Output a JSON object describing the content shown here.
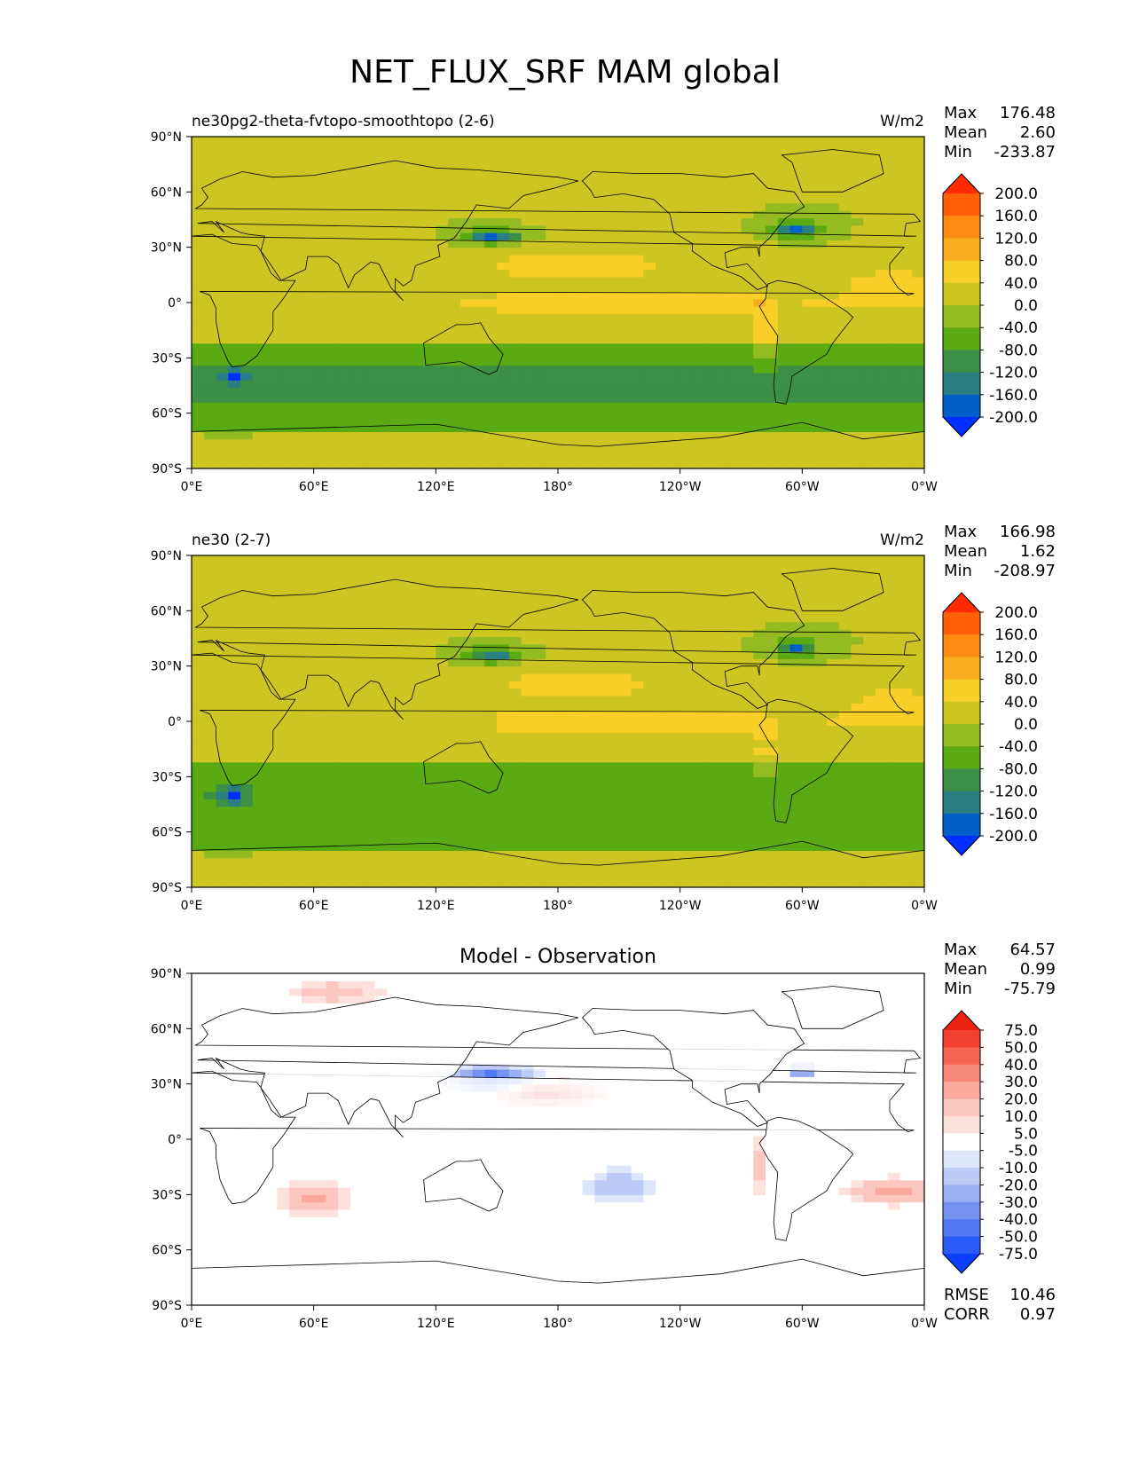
{
  "title": "NET_FLUX_SRF MAM global",
  "x_ticks": [
    "0°E",
    "60°E",
    "120°E",
    "180°",
    "120°W",
    "60°W",
    "0°W"
  ],
  "y_ticks": [
    "90°N",
    "60°N",
    "30°N",
    "0°",
    "30°S",
    "60°S",
    "90°S"
  ],
  "stat_labels": {
    "max": "Max",
    "mean": "Mean",
    "min": "Min",
    "rmse": "RMSE",
    "corr": "CORR"
  },
  "colors": {
    "model_levels": [
      "#0030ff",
      "#0060c8",
      "#2a7f82",
      "#3c8f44",
      "#5aaa14",
      "#95bb22",
      "#ccc522",
      "#f8cf26",
      "#f8ad1e",
      "#ff8a14",
      "#ff5f08",
      "#ff2a00"
    ],
    "diff_levels": [
      "#0a3fff",
      "#2c5cf8",
      "#5278f2",
      "#7693f0",
      "#9aaff2",
      "#bccaf6",
      "#dde5fb",
      "#ffffff",
      "#fde1dc",
      "#fcc7be",
      "#faa99c",
      "#f8887a",
      "#f56552",
      "#f1412e",
      "#ee2010"
    ],
    "coast": "#000000"
  },
  "chart_data": [
    {
      "type": "heatmap",
      "title": "ne30pg2-theta-fvtopo-smoothtopo (2-6)",
      "units": "W/m2",
      "stats": {
        "max": "176.48",
        "mean": "2.60",
        "min": "-233.87"
      },
      "colorbar_labels": [
        "200.0",
        "160.0",
        "120.0",
        "80.0",
        "40.0",
        "0.0",
        "-40.0",
        "-80.0",
        "-120.0",
        "-160.0",
        "-200.0"
      ],
      "xlim": [
        0,
        360
      ],
      "ylim": [
        -90,
        90
      ]
    },
    {
      "type": "heatmap",
      "title": "ne30 (2-7)",
      "units": "W/m2",
      "stats": {
        "max": "166.98",
        "mean": "1.62",
        "min": "-208.97"
      },
      "colorbar_labels": [
        "200.0",
        "160.0",
        "120.0",
        "80.0",
        "40.0",
        "0.0",
        "-40.0",
        "-80.0",
        "-120.0",
        "-160.0",
        "-200.0"
      ],
      "xlim": [
        0,
        360
      ],
      "ylim": [
        -90,
        90
      ]
    },
    {
      "type": "heatmap",
      "title": "Model - Observation",
      "stats": {
        "max": "64.57",
        "mean": "0.99",
        "min": "-75.79",
        "rmse": "10.46",
        "corr": "0.97"
      },
      "colorbar_labels": [
        "75.0",
        "50.0",
        "40.0",
        "30.0",
        "20.0",
        "10.0",
        "5.0",
        "-5.0",
        "-10.0",
        "-20.0",
        "-30.0",
        "-40.0",
        "-50.0",
        "-75.0"
      ],
      "xlim": [
        0,
        360
      ],
      "ylim": [
        -90,
        90
      ]
    }
  ]
}
